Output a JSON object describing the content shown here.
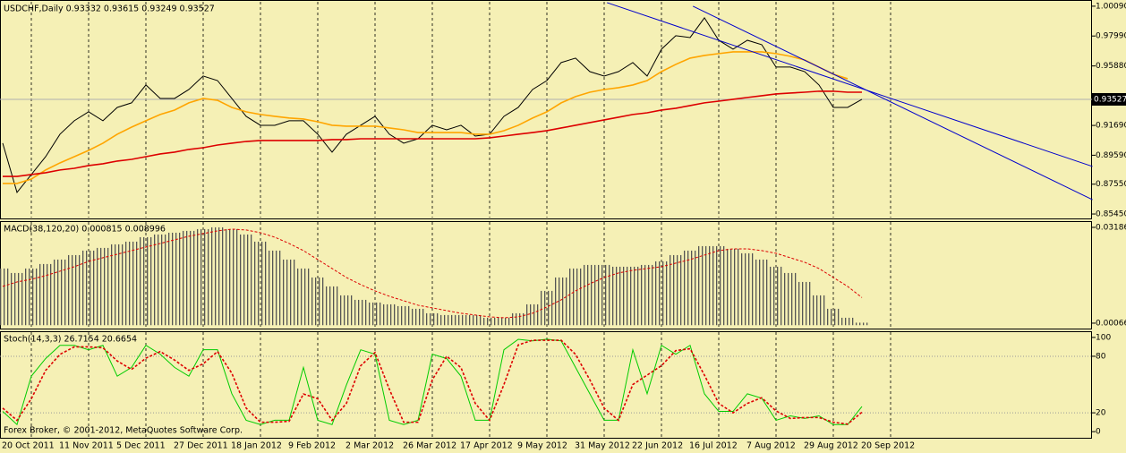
{
  "chart_data": [
    {
      "type": "line",
      "title": "USDCHF,Daily  0.93332 0.93615 0.93249 0.93527",
      "ylim": [
        0.852,
        1.004
      ],
      "yticks": [
        {
          "value": 1.0009,
          "label": "1.00090"
        },
        {
          "value": 0.9799,
          "label": "0.97990"
        },
        {
          "value": 0.9588,
          "label": "0.95880"
        },
        {
          "value": 0.9169,
          "label": "0.91690"
        },
        {
          "value": 0.8959,
          "label": "0.89590"
        },
        {
          "value": 0.8755,
          "label": "0.87550"
        },
        {
          "value": 0.8545,
          "label": "0.85450"
        }
      ],
      "current": {
        "value": 0.93527,
        "label": "0.93527"
      },
      "series": [
        {
          "color": "#000000",
          "values": [
            0.9044,
            0.8697,
            0.8823,
            0.8949,
            0.9107,
            0.9202,
            0.9265,
            0.9202,
            0.9296,
            0.9328,
            0.9454,
            0.9359,
            0.9359,
            0.9422,
            0.9517,
            0.9485,
            0.9359,
            0.9233,
            0.917,
            0.917,
            0.9202,
            0.9202,
            0.9107,
            0.8981,
            0.9107,
            0.917,
            0.9233,
            0.9107,
            0.9044,
            0.9075,
            0.917,
            0.9138,
            0.917,
            0.9094,
            0.9107,
            0.9233,
            0.9296,
            0.9422,
            0.9485,
            0.9612,
            0.9643,
            0.9548,
            0.9517,
            0.9548,
            0.9612,
            0.9517,
            0.9706,
            0.9801,
            0.9788,
            0.9927,
            0.9769,
            0.9706,
            0.9769,
            0.9738,
            0.958,
            0.958,
            0.9548,
            0.9454,
            0.9296,
            0.9296,
            0.93527,
            null,
            null
          ]
        },
        {
          "color": "#ffa500",
          "values": [
            0.876,
            0.876,
            0.8791,
            0.8855,
            0.8905,
            0.8949,
            0.8993,
            0.9044,
            0.9107,
            0.9157,
            0.9202,
            0.9246,
            0.9277,
            0.9328,
            0.9359,
            0.9346,
            0.9296,
            0.9265,
            0.9246,
            0.9233,
            0.9221,
            0.9214,
            0.9195,
            0.917,
            0.9164,
            0.9164,
            0.9164,
            0.9151,
            0.9138,
            0.9119,
            0.9119,
            0.9119,
            0.9119,
            0.9107,
            0.9107,
            0.9132,
            0.917,
            0.9221,
            0.9265,
            0.9328,
            0.9372,
            0.9403,
            0.9422,
            0.9435,
            0.9454,
            0.9485,
            0.9548,
            0.9599,
            0.9643,
            0.9662,
            0.9675,
            0.9687,
            0.9687,
            0.9687,
            0.9675,
            0.9656,
            0.963,
            0.958,
            0.953,
            0.9498,
            null,
            null,
            null
          ]
        },
        {
          "color": "#dd0000",
          "values": [
            0.881,
            0.881,
            0.8823,
            0.8836,
            0.8855,
            0.8867,
            0.8886,
            0.8899,
            0.8918,
            0.893,
            0.8949,
            0.8968,
            0.8981,
            0.9,
            0.9012,
            0.9031,
            0.9044,
            0.9056,
            0.9063,
            0.9063,
            0.9063,
            0.9063,
            0.9063,
            0.9069,
            0.9069,
            0.9075,
            0.9075,
            0.9075,
            0.9075,
            0.9075,
            0.9075,
            0.9075,
            0.9075,
            0.9075,
            0.9082,
            0.9094,
            0.9107,
            0.9119,
            0.9132,
            0.9151,
            0.917,
            0.9189,
            0.9208,
            0.9227,
            0.9246,
            0.9258,
            0.9277,
            0.929,
            0.9309,
            0.9328,
            0.934,
            0.9353,
            0.9366,
            0.9378,
            0.9391,
            0.9397,
            0.9403,
            0.941,
            0.941,
            0.9403,
            0.9403,
            null,
            null
          ]
        }
      ],
      "trendlines": [
        {
          "color": "#0000cc",
          "x": [
            42.2,
            76.1
          ],
          "y": [
            1.0034,
            0.888
          ]
        },
        {
          "color": "#0000cc",
          "x": [
            48.2,
            76.1
          ],
          "y": [
            1.0009,
            0.8646
          ]
        }
      ]
    },
    {
      "type": "bar",
      "title": "MACD(38,120,20) 0.000815 0.008996",
      "ylim": [
        -0.0011,
        0.0336
      ],
      "yticks": [
        0.03186,
        0.00066
      ],
      "color": "#555555",
      "values": [
        0.01846,
        0.017,
        0.01846,
        0.01992,
        0.02137,
        0.02283,
        0.02429,
        0.02517,
        0.02633,
        0.02721,
        0.02866,
        0.02954,
        0.03012,
        0.03071,
        0.03129,
        0.03187,
        0.03129,
        0.02954,
        0.02721,
        0.02429,
        0.02137,
        0.01846,
        0.01554,
        0.01263,
        0.00971,
        0.00825,
        0.00738,
        0.00679,
        0.00621,
        0.00534,
        0.00388,
        0.0033,
        0.0033,
        0.0033,
        0.00242,
        0.00242,
        0.00388,
        0.00679,
        0.01117,
        0.01554,
        0.01846,
        0.01962,
        0.01962,
        0.01904,
        0.01904,
        0.01962,
        0.02079,
        0.02283,
        0.02429,
        0.02575,
        0.02575,
        0.02487,
        0.02342,
        0.02137,
        0.01904,
        0.017,
        0.01408,
        0.00971,
        0.00534,
        0.00242,
        0.000815,
        null,
        null
      ],
      "signal": {
        "color": "#dd0000",
        "dash": true,
        "values": [
          0.01263,
          0.01408,
          0.01496,
          0.01613,
          0.01758,
          0.01904,
          0.02079,
          0.02196,
          0.02312,
          0.02429,
          0.02546,
          0.02662,
          0.02779,
          0.02896,
          0.02983,
          0.03071,
          0.03129,
          0.031,
          0.03012,
          0.02866,
          0.02662,
          0.02429,
          0.02137,
          0.01846,
          0.01554,
          0.01321,
          0.01117,
          0.00942,
          0.00796,
          0.0065,
          0.00563,
          0.00475,
          0.00388,
          0.0033,
          0.00271,
          0.00242,
          0.00271,
          0.00388,
          0.00592,
          0.00825,
          0.01117,
          0.0135,
          0.01554,
          0.017,
          0.01788,
          0.01846,
          0.01904,
          0.02021,
          0.02137,
          0.02283,
          0.02429,
          0.02487,
          0.02487,
          0.02429,
          0.02342,
          0.02196,
          0.0205,
          0.01846,
          0.01554,
          0.01263,
          0.008996,
          null,
          null
        ]
      }
    },
    {
      "type": "line",
      "title": "Stoch(14,3,3) 26.7154 20.6654",
      "ylim": [
        -6.5,
        105.6
      ],
      "yticks": [
        100,
        80,
        20,
        0
      ],
      "levels": [
        80,
        20
      ],
      "categories": [
        null,
        null,
        "20 Oct 2011",
        null,
        null,
        null,
        "11 Nov 2011",
        null,
        null,
        null,
        "5 Dec 2011",
        null,
        null,
        null,
        "27 Dec 2011",
        null,
        null,
        null,
        "18 Jan 2012",
        null,
        null,
        null,
        "9 Feb 2012",
        null,
        null,
        null,
        "2 Mar 2012",
        null,
        null,
        null,
        "26 Mar 2012",
        null,
        null,
        null,
        "17 Apr 2012",
        null,
        null,
        null,
        "9 May 2012",
        null,
        null,
        null,
        "31 May 2012",
        null,
        null,
        null,
        "22 Jun 2012",
        null,
        null,
        null,
        "16 Jul 2012",
        null,
        null,
        null,
        "7 Aug 2012",
        null,
        null,
        null,
        "29 Aug 2012",
        null,
        null,
        null,
        "20 Sep 2012"
      ],
      "series": [
        {
          "color": "#00cc00",
          "values": [
            21.5,
            7.5,
            58.9,
            77.6,
            91.6,
            91.6,
            86.9,
            91.6,
            58.9,
            68.2,
            91.6,
            82.2,
            68.2,
            58.9,
            86.9,
            86.9,
            40.2,
            12.1,
            7.5,
            12.1,
            12.1,
            68.2,
            12.1,
            7.5,
            49.5,
            86.9,
            82.2,
            12.1,
            7.5,
            12.1,
            82.2,
            77.6,
            58.9,
            12.1,
            12.1,
            86.9,
            98,
            96.3,
            98.1,
            96.3,
            68.2,
            40.2,
            12.1,
            12.1,
            86.9,
            40.2,
            91.6,
            82.2,
            91.6,
            40.2,
            21.5,
            21.5,
            40.2,
            35.5,
            12.1,
            16.8,
            14,
            16.8,
            7.5,
            7.5,
            26.7154,
            null,
            null
          ]
        },
        {
          "color": "#dd0000",
          "dash": true,
          "values": [
            25,
            12,
            35,
            65,
            82,
            90,
            90,
            89,
            75,
            66,
            78,
            85,
            76,
            65,
            72,
            85,
            62,
            25,
            10,
            10,
            11,
            40,
            35,
            12,
            30,
            70,
            84,
            45,
            10,
            10,
            55,
            80,
            68,
            30,
            12,
            50,
            92,
            97,
            97,
            97,
            82,
            55,
            25,
            12,
            50,
            60,
            70,
            86,
            88,
            60,
            30,
            20,
            30,
            36,
            22,
            14,
            15,
            15,
            10,
            8,
            20.6654,
            null,
            null
          ]
        }
      ]
    }
  ],
  "footer": "Forex Broker, © 2001-2012, MetaQuotes Software Corp."
}
